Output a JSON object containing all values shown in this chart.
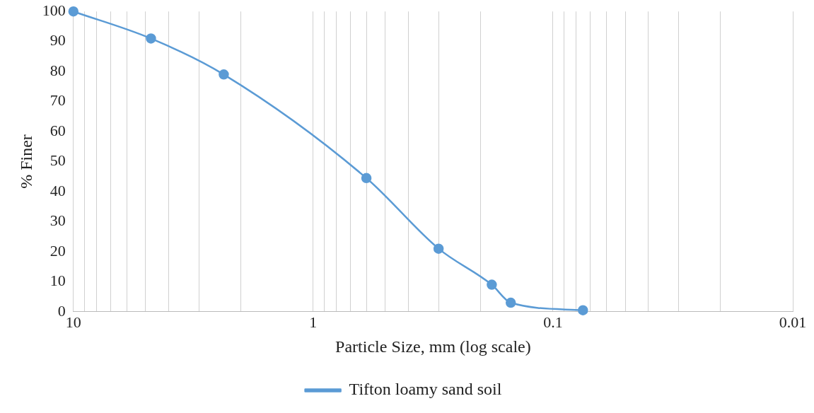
{
  "chart_data": {
    "type": "line",
    "xlabel": "Particle Size, mm (log scale)",
    "ylabel": "% Finer",
    "x": [
      10,
      4.75,
      2.36,
      0.6,
      0.3,
      0.18,
      0.15,
      0.075
    ],
    "series": [
      {
        "name": "Tifton loamy sand soil",
        "color": "#5b9bd5",
        "values": [
          100,
          91,
          79,
          44.5,
          21,
          9,
          3,
          0.5
        ]
      }
    ],
    "log": "x",
    "xlim": [
      10,
      0.01
    ],
    "ylim": [
      0,
      100
    ],
    "xticks": [
      10,
      {
        "value": 9,
        "label": null
      },
      {
        "value": 8,
        "label": null
      },
      {
        "value": 7,
        "label": null
      },
      {
        "value": 6,
        "label": null
      },
      {
        "value": 5,
        "label": null
      },
      {
        "value": 4,
        "label": null
      },
      {
        "value": 3,
        "label": null
      },
      {
        "value": 2,
        "label": null
      },
      1,
      {
        "value": 0.9,
        "label": null
      },
      {
        "value": 0.8,
        "label": null
      },
      {
        "value": 0.7,
        "label": null
      },
      {
        "value": 0.6,
        "label": null
      },
      {
        "value": 0.5,
        "label": null
      },
      {
        "value": 0.4,
        "label": null
      },
      {
        "value": 0.3,
        "label": null
      },
      {
        "value": 0.2,
        "label": null
      },
      0.1,
      {
        "value": 0.09,
        "label": null
      },
      {
        "value": 0.08,
        "label": null
      },
      {
        "value": 0.07,
        "label": null
      },
      {
        "value": 0.06,
        "label": null
      },
      {
        "value": 0.05,
        "label": null
      },
      {
        "value": 0.04,
        "label": null
      },
      {
        "value": 0.03,
        "label": null
      },
      {
        "value": 0.02,
        "label": null
      },
      0.01
    ],
    "yticks": [
      0,
      10,
      20,
      30,
      40,
      50,
      60,
      70,
      80,
      90,
      100
    ],
    "grid": "x",
    "legend": "bottom",
    "marker": "circle",
    "line_style": "solid"
  }
}
